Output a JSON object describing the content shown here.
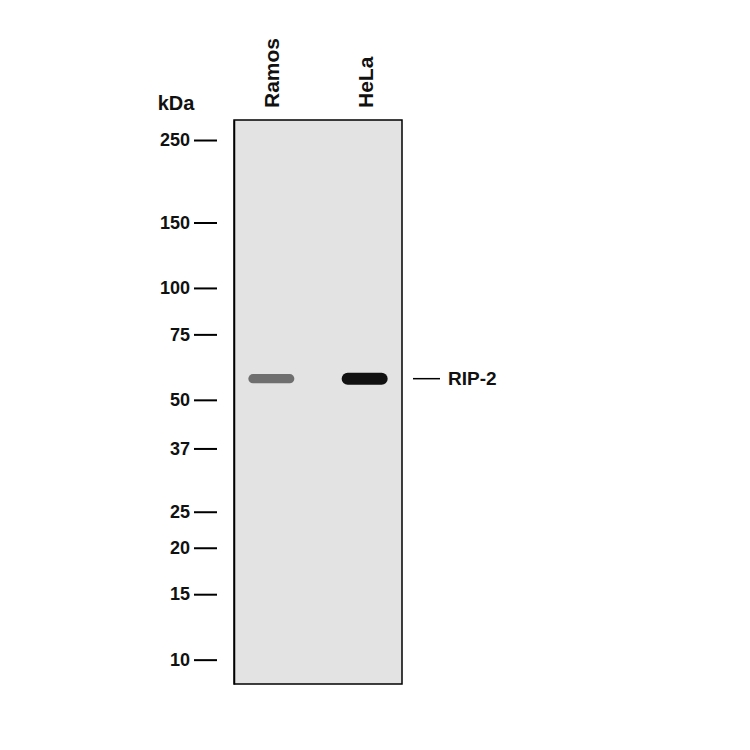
{
  "chart_data": {
    "type": "blot",
    "y_label": "kDa",
    "categories": [
      "Ramos",
      "HeLa"
    ],
    "values": [
      57,
      57
    ],
    "intensity": [
      0.55,
      1
    ],
    "color": "#111111",
    "log": "y",
    "ylim": [
      8.6,
      283
    ],
    "yticks": [
      250,
      150,
      100,
      75,
      50,
      37,
      25,
      20,
      15,
      10
    ],
    "annotations": [
      {
        "text": "RIP-2",
        "value": 57
      }
    ]
  }
}
